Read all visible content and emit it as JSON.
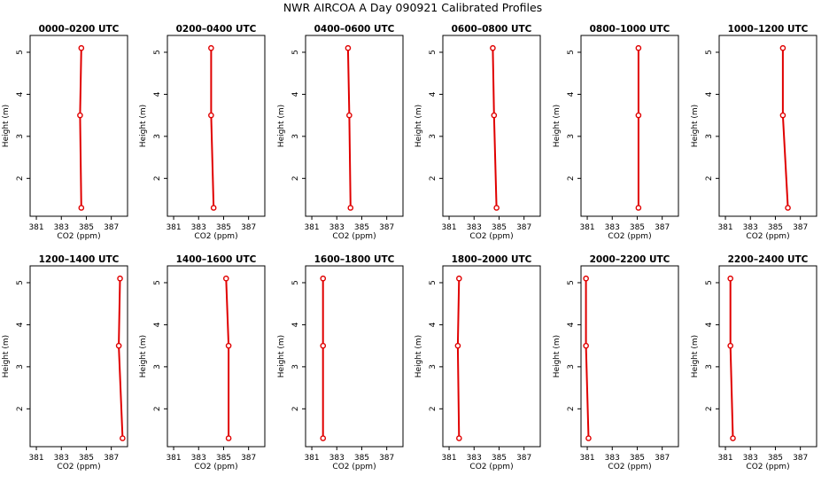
{
  "chart_data": {
    "type": "line",
    "title": "NWR AIRCOA A  Day 090921  Calibrated Profiles",
    "xlabel": "CO2 (ppm)",
    "ylabel": "Height (m)",
    "xlim": [
      380.5,
      388.3
    ],
    "ylim": [
      1.1,
      5.4
    ],
    "xticks": [
      381,
      383,
      385,
      387
    ],
    "xtick_labels": [
      "381",
      "383",
      "385",
      "387"
    ],
    "yticks": [
      2,
      3,
      4,
      5
    ],
    "ytick_labels": [
      "2",
      "3",
      "4",
      "5"
    ],
    "line_color": "#e00000",
    "panels": [
      {
        "title": "0000–0200 UTC",
        "points": [
          {
            "co2": 384.6,
            "height": 5.1
          },
          {
            "co2": 384.5,
            "height": 3.5
          },
          {
            "co2": 384.6,
            "height": 1.3
          }
        ]
      },
      {
        "title": "0200–0400 UTC",
        "points": [
          {
            "co2": 384.0,
            "height": 5.1
          },
          {
            "co2": 384.0,
            "height": 3.5
          },
          {
            "co2": 384.2,
            "height": 1.3
          }
        ]
      },
      {
        "title": "0400–0600 UTC",
        "points": [
          {
            "co2": 383.9,
            "height": 5.1
          },
          {
            "co2": 384.0,
            "height": 3.5
          },
          {
            "co2": 384.1,
            "height": 1.3
          }
        ]
      },
      {
        "title": "0600–0800 UTC",
        "points": [
          {
            "co2": 384.5,
            "height": 5.1
          },
          {
            "co2": 384.6,
            "height": 3.5
          },
          {
            "co2": 384.8,
            "height": 1.3
          }
        ]
      },
      {
        "title": "0800–1000 UTC",
        "points": [
          {
            "co2": 385.1,
            "height": 5.1
          },
          {
            "co2": 385.1,
            "height": 3.5
          },
          {
            "co2": 385.1,
            "height": 1.3
          }
        ]
      },
      {
        "title": "1000–1200 UTC",
        "points": [
          {
            "co2": 385.6,
            "height": 5.1
          },
          {
            "co2": 385.6,
            "height": 3.5
          },
          {
            "co2": 386.0,
            "height": 1.3
          }
        ]
      },
      {
        "title": "1200–1400 UTC",
        "points": [
          {
            "co2": 387.7,
            "height": 5.1
          },
          {
            "co2": 387.6,
            "height": 3.5
          },
          {
            "co2": 387.9,
            "height": 1.3
          }
        ]
      },
      {
        "title": "1400–1600 UTC",
        "points": [
          {
            "co2": 385.2,
            "height": 5.1
          },
          {
            "co2": 385.4,
            "height": 3.5
          },
          {
            "co2": 385.4,
            "height": 1.3
          }
        ]
      },
      {
        "title": "1600–1800 UTC",
        "points": [
          {
            "co2": 381.9,
            "height": 5.1
          },
          {
            "co2": 381.9,
            "height": 3.5
          },
          {
            "co2": 381.9,
            "height": 1.3
          }
        ]
      },
      {
        "title": "1800–2000 UTC",
        "points": [
          {
            "co2": 381.8,
            "height": 5.1
          },
          {
            "co2": 381.7,
            "height": 3.5
          },
          {
            "co2": 381.8,
            "height": 1.3
          }
        ]
      },
      {
        "title": "2000–2200 UTC",
        "points": [
          {
            "co2": 380.9,
            "height": 5.1
          },
          {
            "co2": 380.9,
            "height": 3.5
          },
          {
            "co2": 381.1,
            "height": 1.3
          }
        ]
      },
      {
        "title": "2200–2400 UTC",
        "points": [
          {
            "co2": 381.4,
            "height": 5.1
          },
          {
            "co2": 381.4,
            "height": 3.5
          },
          {
            "co2": 381.6,
            "height": 1.3
          }
        ]
      }
    ]
  }
}
